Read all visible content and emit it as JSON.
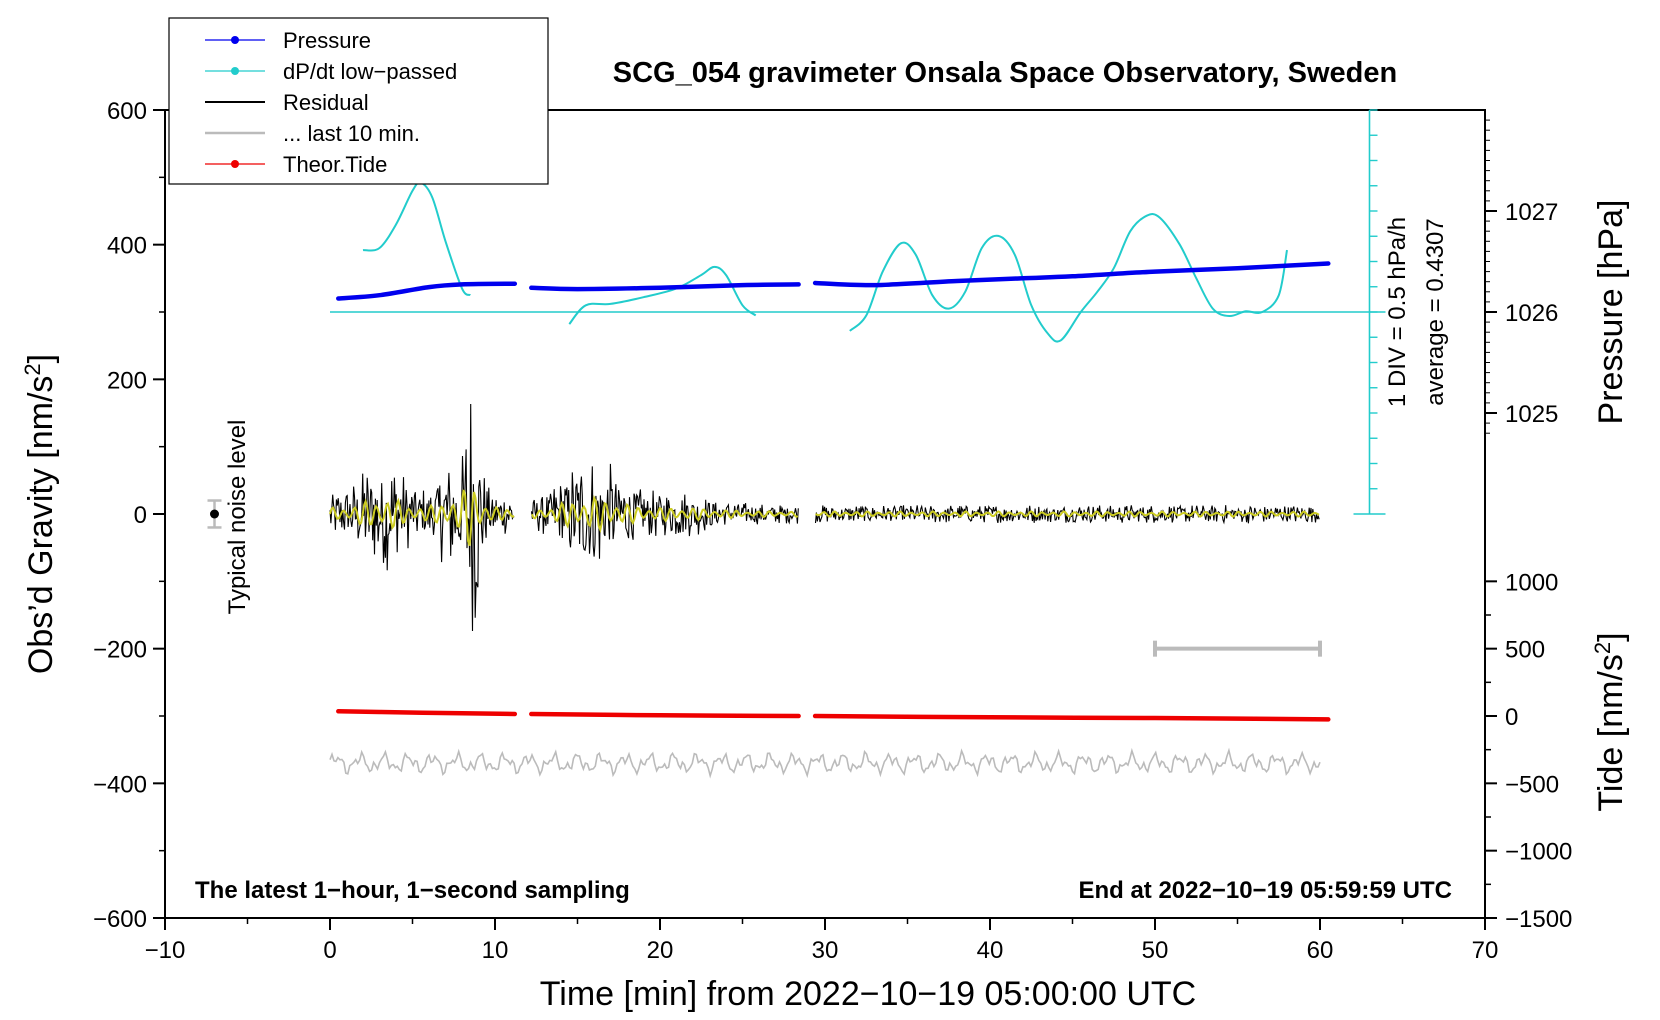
{
  "chart_data": {
    "type": "line",
    "title": "SCG_054 gravimeter Onsala Space Observatory, Sweden",
    "xlabel": "Time [min] from 2022−10−19 05:00:00 UTC",
    "ylabel_main": "Obs’d Gravity [nm/s",
    "ylabel_main_sup": "2",
    "ylabel_main_end": "]",
    "ylabel_pressure": "Pressure [hPa]",
    "ylabel_tide": "Tide [nm/s",
    "ylabel_tide_sup": "2",
    "ylabel_tide_end": "]",
    "xlim": [
      -10,
      70
    ],
    "ylim": [
      -600,
      600
    ],
    "x_ticks": [
      -10,
      0,
      10,
      20,
      30,
      40,
      50,
      60,
      70
    ],
    "x_tick_labels": [
      "−10",
      "0",
      "10",
      "20",
      "30",
      "40",
      "50",
      "60",
      "70"
    ],
    "y_ticks": [
      -600,
      -400,
      -200,
      0,
      200,
      400,
      600
    ],
    "y_tick_labels": [
      "−600",
      "−400",
      "−200",
      "0",
      "200",
      "400",
      "600"
    ],
    "pressure_axis": {
      "ticks_hpa": [
        1025,
        1026,
        1027
      ],
      "tick_labels": [
        "1025",
        "1026",
        "1027"
      ],
      "gravity_at_1026": 300,
      "gravity_per_hpa": 150
    },
    "tide_axis": {
      "ticks": [
        -1500,
        -1000,
        -500,
        0,
        500,
        1000
      ],
      "tick_labels": [
        "−1500",
        "−1000",
        "−500",
        "0",
        "500",
        "1000"
      ],
      "gravity_at_zero": -300,
      "gravity_per_unit": 0.2
    },
    "dpdt_scale": {
      "label_div": "1 DIV = 0.5 hPa/h",
      "label_avg": "average = 0.4307",
      "x": 63,
      "y_range": [
        0,
        600
      ],
      "baseline": 300,
      "tick_step": 37.5
    },
    "noise_level": {
      "label": "Typical noise level",
      "x": -7,
      "y": 0,
      "err": 20
    },
    "last10_bar": {
      "x_start": 50,
      "x_end": 60,
      "y": -200
    },
    "annotation_left": "The latest 1−hour, 1−second sampling",
    "annotation_right": "End at 2022−10−19 05:59:59 UTC",
    "gaps": [
      [
        11.2,
        12.2
      ],
      [
        28.4,
        29.4
      ]
    ],
    "series": [
      {
        "name": "Pressure",
        "color": "#0000ee",
        "x": [
          0.5,
          3,
          6,
          8,
          11.2,
          12.2,
          15,
          20,
          25,
          28.4,
          29.4,
          33,
          38,
          42,
          45,
          50,
          55,
          60.5
        ],
        "y": [
          320,
          325,
          337,
          341,
          342,
          336,
          334,
          336,
          340,
          341,
          343,
          340,
          346,
          350,
          353,
          360,
          365,
          372
        ]
      },
      {
        "name": "dP/dt low−passed",
        "color": "#22cccc",
        "x": [
          2,
          3,
          4,
          5,
          5.5,
          6.2,
          7,
          8,
          8.5,
          null,
          14.5,
          15.5,
          17,
          19,
          21,
          22.5,
          23.3,
          24,
          25,
          25.8,
          null,
          31.5,
          32.5,
          33.5,
          34.6,
          35.5,
          36.5,
          37.5,
          38.5,
          39.5,
          40.5,
          41.5,
          42.5,
          43.5,
          44.3,
          45.5,
          46.5,
          47.5,
          48.5,
          49.5,
          50.3,
          51.5,
          52.5,
          53.5,
          54.5,
          55.5,
          56.5,
          57.5,
          58
        ],
        "y": [
          392,
          395,
          430,
          480,
          492,
          470,
          405,
          335,
          325,
          null,
          282,
          310,
          312,
          322,
          335,
          355,
          367,
          355,
          310,
          295,
          null,
          272,
          295,
          360,
          402,
          385,
          325,
          305,
          330,
          395,
          413,
          385,
          310,
          268,
          258,
          300,
          330,
          365,
          420,
          443,
          440,
          400,
          350,
          305,
          294,
          301,
          300,
          325,
          392
        ]
      },
      {
        "name": "Residual",
        "color": "#000000",
        "x": [
          0,
          11.2,
          12.2,
          28.4,
          29.4,
          60
        ],
        "y": [
          0,
          0,
          0,
          0,
          0,
          0
        ]
      },
      {
        "name": "... last 10 min.",
        "color": "#bbbbbb",
        "x": [
          0,
          60
        ],
        "y": [
          -370,
          -370
        ]
      },
      {
        "name": "Theor.Tide",
        "color": "#ee0000",
        "x": [
          0.5,
          3,
          8,
          11.2,
          12.2,
          20,
          28.4,
          29.4,
          40,
          50,
          60.5
        ],
        "y": [
          -293,
          -294,
          -296,
          -297,
          -297,
          -299,
          -300,
          -300,
          -302,
          -303,
          -305
        ]
      }
    ],
    "legend": [
      {
        "label": "Pressure",
        "color": "#0000ee",
        "marker": true
      },
      {
        "label": "dP/dt low−passed",
        "color": "#22cccc",
        "marker": true
      },
      {
        "label": "Residual",
        "color": "#000000",
        "marker": false
      },
      {
        "label": "... last 10 min.",
        "color": "#bbbbbb",
        "marker": false
      },
      {
        "label": "Theor.Tide",
        "color": "#ee0000",
        "marker": true
      }
    ]
  }
}
